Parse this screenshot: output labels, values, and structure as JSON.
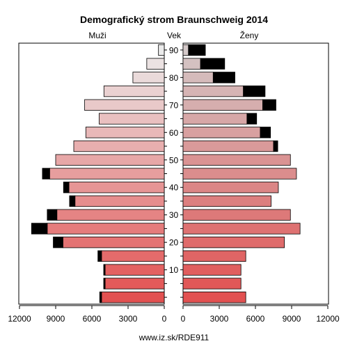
{
  "chart_data": {
    "type": "bar",
    "title": "Demografický strom Braunschweig 2014",
    "left_label": "Muži",
    "center_label": "Vek",
    "right_label": "Ženy",
    "footer": "www.iz.sk/RDE911",
    "x_ticks": [
      "12000",
      "9000",
      "6000",
      "3000",
      "0"
    ],
    "x_ticks_right": [
      "0",
      "3000",
      "6000",
      "9000",
      "12000"
    ],
    "age_tick_labels": [
      "10",
      "20",
      "30",
      "40",
      "50",
      "60",
      "70",
      "80",
      "90"
    ],
    "xlim": [
      0,
      12000
    ],
    "age_groups": [
      "0-4",
      "5-9",
      "10-14",
      "15-19",
      "20-24",
      "25-29",
      "30-34",
      "35-39",
      "40-44",
      "45-49",
      "50-54",
      "55-59",
      "60-64",
      "65-69",
      "70-74",
      "75-79",
      "80-84",
      "85-89",
      "90+"
    ],
    "series": [
      {
        "name": "Muži",
        "values": [
          5200,
          4900,
          4900,
          5200,
          8400,
          9700,
          8900,
          7400,
          7900,
          9500,
          9000,
          7500,
          6500,
          5400,
          6600,
          5000,
          2600,
          1450,
          480
        ],
        "surplus": [
          150,
          120,
          120,
          300,
          800,
          1300,
          800,
          450,
          450,
          600,
          0,
          0,
          0,
          0,
          0,
          0,
          0,
          0,
          0
        ]
      },
      {
        "name": "Ženy",
        "values": [
          5200,
          4800,
          4800,
          5200,
          8400,
          9700,
          8900,
          7300,
          7900,
          9400,
          8900,
          7500,
          6400,
          5300,
          6600,
          5000,
          2500,
          1450,
          450
        ],
        "surplus": [
          0,
          0,
          0,
          0,
          0,
          0,
          0,
          0,
          0,
          0,
          0,
          350,
          850,
          800,
          1100,
          1800,
          1800,
          2000,
          1400
        ]
      }
    ],
    "colors": {
      "male_bottom": "#e25151",
      "male_top": "#ebebeb",
      "female_bottom": "#e25151",
      "female_top": "#d3c8c8",
      "surplus": "#000000",
      "outline": "#000000"
    }
  }
}
